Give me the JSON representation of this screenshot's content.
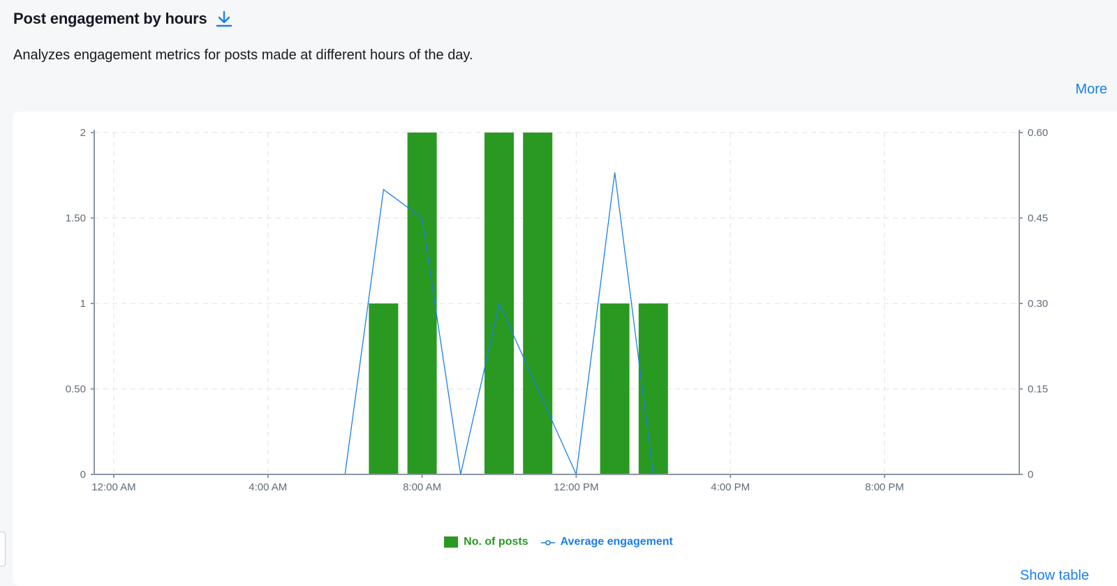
{
  "header": {
    "title": "Post engagement by hours",
    "description": "Analyzes engagement metrics for posts made at different hours of the day.",
    "more_label": "More",
    "download_icon": "download-icon"
  },
  "footer": {
    "partial_link": "Show table"
  },
  "colors": {
    "bars": "#2a9922",
    "line": "#1a7fe8",
    "link": "#1a7fe8"
  },
  "chart_data": {
    "type": "bar",
    "title": "",
    "x": [
      0,
      1,
      2,
      3,
      4,
      5,
      6,
      7,
      8,
      9,
      10,
      11,
      12,
      13,
      14,
      15,
      16,
      17,
      18,
      19,
      20,
      21,
      22,
      23
    ],
    "x_tick_positions": [
      0,
      4,
      8,
      12,
      16,
      20
    ],
    "x_ticks": [
      "12:00 AM",
      "4:00 AM",
      "8:00 AM",
      "12:00 PM",
      "4:00 PM",
      "8:00 PM"
    ],
    "y_left_ticks": [
      "0",
      "0.50",
      "1",
      "1.50",
      "2"
    ],
    "y_left_range": [
      0,
      2
    ],
    "y_right_ticks": [
      "0",
      "0.15",
      "0.30",
      "0.45",
      "0.60"
    ],
    "y_right_range": [
      0,
      0.6
    ],
    "grid": true,
    "legend_position": "bottom-center",
    "series": [
      {
        "name": "No. of posts",
        "type": "bar",
        "axis": "left",
        "values": [
          0,
          0,
          0,
          0,
          0,
          0,
          0,
          1,
          2,
          0,
          2,
          2,
          0,
          1,
          1,
          0,
          0,
          0,
          0,
          0,
          0,
          0,
          0,
          0
        ]
      },
      {
        "name": "Average engagement",
        "type": "line",
        "axis": "right",
        "values": [
          null,
          null,
          null,
          null,
          null,
          null,
          0,
          0.5,
          0.45,
          0,
          0.3,
          0.15,
          0,
          0.53,
          0,
          null,
          null,
          null,
          null,
          null,
          null,
          null,
          null,
          null
        ]
      }
    ]
  }
}
